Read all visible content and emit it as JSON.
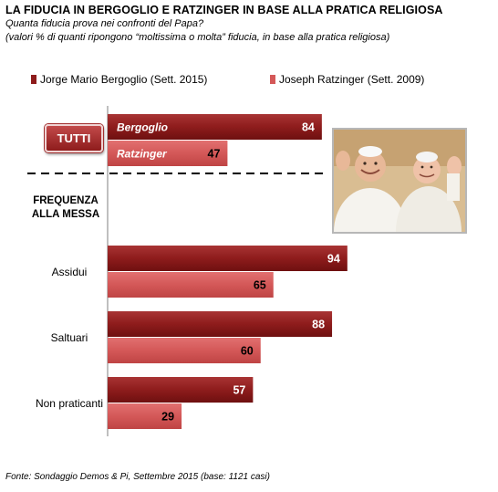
{
  "title": "LA FIDUCIA IN BERGOGLIO E RATZINGER IN BASE ALLA PRATICA RELIGIOSA",
  "subtitle_question": "Quanta fiducia prova nei confronti del Papa?",
  "subtitle_note": "(valori % di quanti ripongono “moltissima o molta” fiducia, in base alla pratica religiosa)",
  "footer": "Fonte: Sondaggio Demos & Pi, Settembre 2015 (base: 1121 casi)",
  "tutti_label": "TUTTI",
  "section_label_line1": "FREQUENZA",
  "section_label_line2": "ALLA MESSA",
  "colors": {
    "bergoglio": "#8e1c1c",
    "ratzinger": "#d45858"
  },
  "chart_data": {
    "type": "bar",
    "orientation": "horizontal",
    "categories": [
      "TUTTI",
      "Assidui",
      "Saltuari",
      "Non praticanti"
    ],
    "series": [
      {
        "name": "Jorge Mario Bergoglio (Sett. 2015)",
        "short": "Bergoglio",
        "values": [
          84,
          94,
          88,
          57
        ]
      },
      {
        "name": "Joseph  Ratzinger (Sett. 2009)",
        "short": "Ratzinger",
        "values": [
          47,
          65,
          60,
          29
        ]
      }
    ],
    "xlim": [
      0,
      100
    ],
    "legend_position": "top",
    "grid": false
  }
}
